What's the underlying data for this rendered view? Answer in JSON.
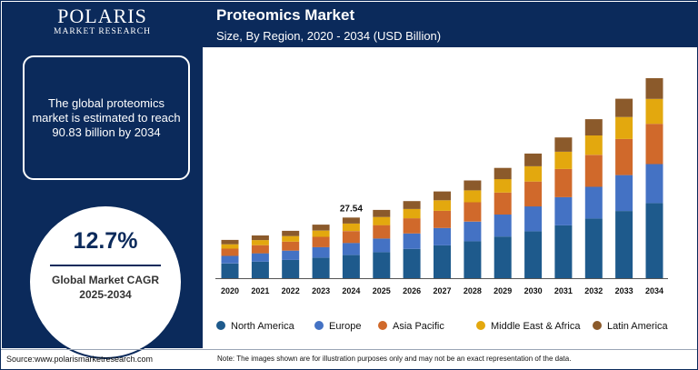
{
  "brand": {
    "name": "POLARIS",
    "tagline": "MARKET RESEARCH"
  },
  "info_text": "The global proteomics market is estimated to reach 90.83 billion by 2034",
  "cagr": {
    "value": "12.7%",
    "label_line1": "Global Market CAGR",
    "label_line2": "2025-2034"
  },
  "footer": {
    "source": "Source:www.polarismarketresearch.com",
    "note": "Note: The images shown are for illustration purposes only and may not be an exact representation of the data."
  },
  "colors": {
    "navy": "#0b2a5b",
    "North America": "#1e5a8c",
    "Europe": "#4472c4",
    "Asia Pacific": "#d0692b",
    "Middle East & Africa": "#e3a80e",
    "Latin America": "#8b5a2b"
  },
  "chart_data": {
    "type": "bar",
    "stacked": true,
    "title": "Proteomics Market",
    "subtitle": "Size, By Region, 2020 - 2034 (USD Billion)",
    "categories": [
      "2020",
      "2021",
      "2022",
      "2023",
      "2024",
      "2025",
      "2026",
      "2027",
      "2028",
      "2029",
      "2030",
      "2031",
      "2032",
      "2033",
      "2034"
    ],
    "series": [
      {
        "name": "North America",
        "values": [
          6.7,
          7.5,
          8.3,
          9.3,
          10.5,
          11.8,
          13.3,
          14.9,
          16.8,
          18.9,
          21.3,
          24.0,
          27.1,
          30.5,
          34.1
        ]
      },
      {
        "name": "Europe",
        "values": [
          3.4,
          3.8,
          4.2,
          4.8,
          5.5,
          6.2,
          7.0,
          7.9,
          8.9,
          10.0,
          11.3,
          12.8,
          14.4,
          16.3,
          17.7
        ]
      },
      {
        "name": "Asia Pacific",
        "values": [
          3.3,
          3.7,
          4.1,
          4.7,
          5.4,
          6.1,
          6.9,
          7.8,
          8.8,
          10.0,
          11.3,
          12.8,
          14.5,
          16.4,
          18.3
        ]
      },
      {
        "name": "Middle East & Africa",
        "values": [
          2.0,
          2.3,
          2.5,
          2.8,
          3.4,
          3.7,
          4.2,
          4.8,
          5.4,
          6.1,
          6.9,
          7.8,
          8.8,
          10.0,
          11.3
        ]
      },
      {
        "name": "Latin America",
        "values": [
          2.0,
          2.1,
          2.4,
          2.7,
          2.74,
          3.2,
          3.6,
          4.0,
          4.5,
          5.1,
          5.8,
          6.5,
          7.4,
          8.3,
          9.43
        ]
      }
    ],
    "annotations": [
      {
        "category": "2024",
        "text": "27.54"
      }
    ],
    "ylim": [
      0,
      90.83
    ],
    "grid": false,
    "legend": "bottom"
  }
}
